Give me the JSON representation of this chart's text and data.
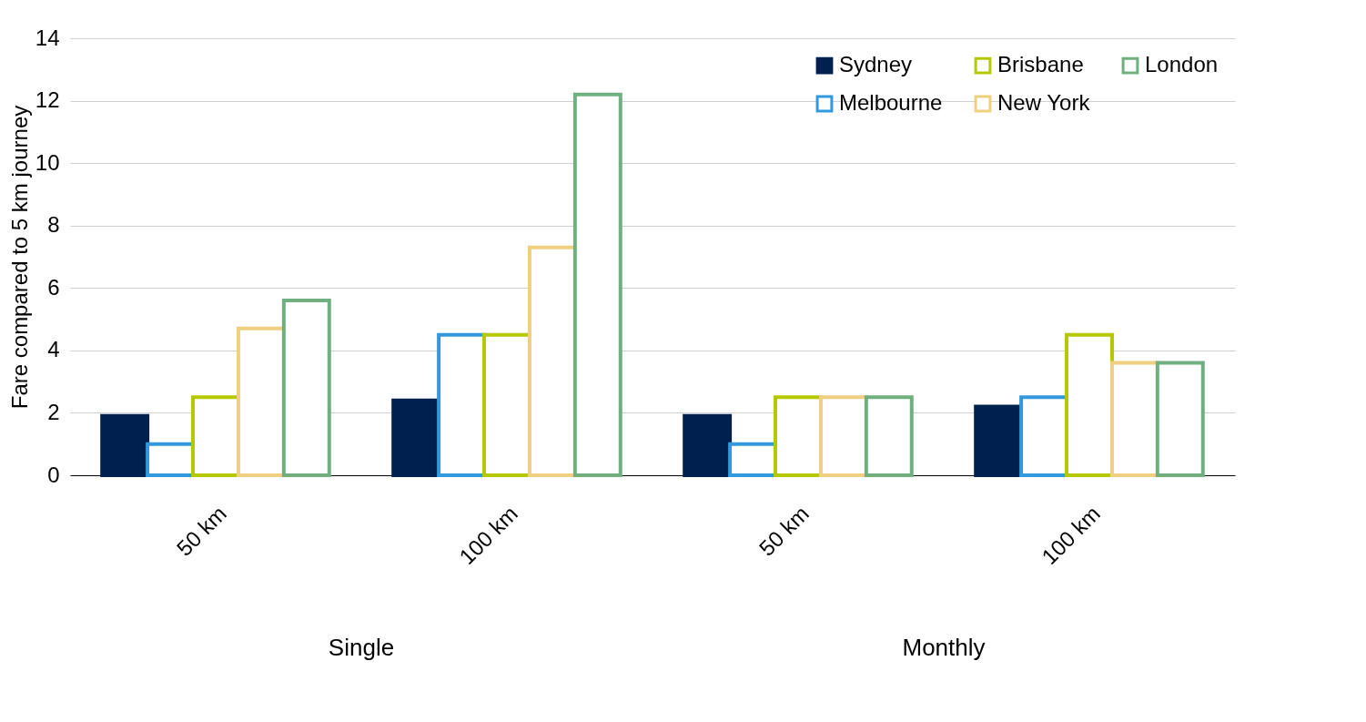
{
  "chart_data": {
    "type": "bar",
    "ylabel": "Fare compared to 5 km journey",
    "categories": [
      "50 km",
      "100 km",
      "50 km",
      "100 km"
    ],
    "series": [
      {
        "name": "Sydney",
        "color": "#002050",
        "values": [
          1.9,
          2.4,
          1.9,
          2.2
        ]
      },
      {
        "name": "Melbourne",
        "color": "#3399dd",
        "values": [
          1.0,
          4.5,
          1.0,
          2.5
        ]
      },
      {
        "name": "Brisbane",
        "color": "#b5c800",
        "values": [
          2.5,
          4.5,
          2.5,
          4.5
        ]
      },
      {
        "name": "New York",
        "color": "#f0d080",
        "values": [
          4.7,
          7.3,
          2.5,
          3.6
        ]
      },
      {
        "name": "London",
        "color": "#70b080",
        "values": [
          5.6,
          12.2,
          2.5,
          3.6
        ]
      }
    ],
    "ylim": [
      0,
      14
    ],
    "yticks": [
      0,
      2,
      4,
      6,
      8,
      10,
      12,
      14
    ],
    "grid": "y",
    "legend": "top right",
    "annotations": [
      "Single",
      "Monthly"
    ]
  }
}
